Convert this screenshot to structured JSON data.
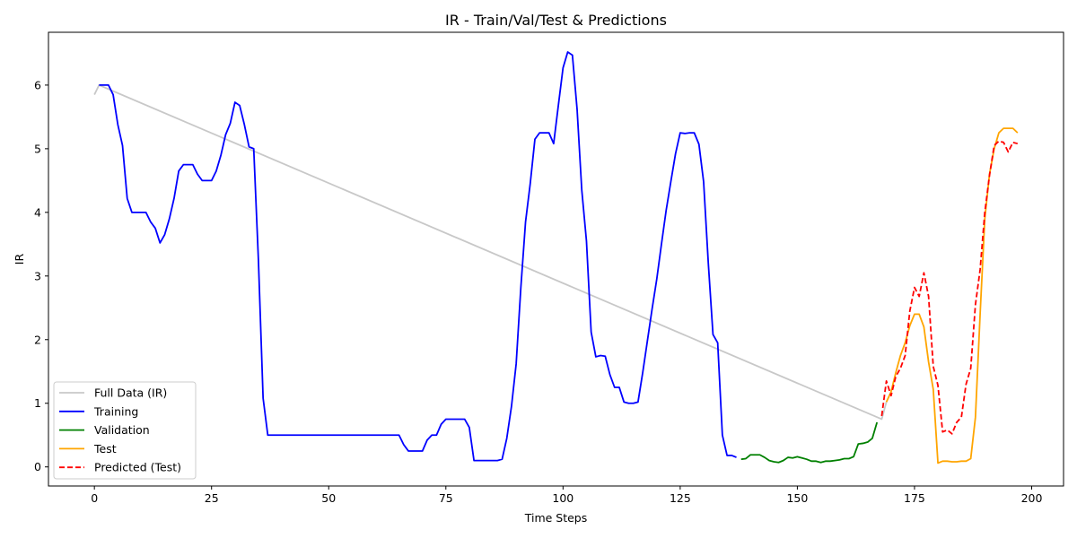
{
  "chart_data": {
    "type": "line",
    "title": "IR - Train/Val/Test & Predictions",
    "xlabel": "Time Steps",
    "ylabel": "IR",
    "xlim": [
      -9.8,
      206.8
    ],
    "ylim": [
      -0.3,
      6.83
    ],
    "xticks": [
      0,
      25,
      50,
      75,
      100,
      125,
      150,
      175,
      200
    ],
    "yticks": [
      0,
      1,
      2,
      3,
      4,
      5,
      6
    ],
    "grid": false,
    "legend_position": "lower-left",
    "series": [
      {
        "name": "Full Data (IR)",
        "color": "#c8c8c8",
        "dash": "solid",
        "points": [
          [
            0,
            5.85
          ],
          [
            1,
            6.0
          ],
          [
            168,
            0.75
          ],
          [
            169,
            1.02
          ]
        ]
      },
      {
        "name": "Training",
        "color": "#0000ff",
        "dash": "solid",
        "points": [
          [
            1,
            6.0
          ],
          [
            2,
            6.0
          ],
          [
            3,
            6.0
          ],
          [
            4,
            5.85
          ],
          [
            5,
            5.38
          ],
          [
            6,
            5.05
          ],
          [
            7,
            4.22
          ],
          [
            8,
            4.0
          ],
          [
            9,
            4.0
          ],
          [
            10,
            4.0
          ],
          [
            11,
            4.0
          ],
          [
            12,
            3.85
          ],
          [
            13,
            3.75
          ],
          [
            14,
            3.52
          ],
          [
            15,
            3.65
          ],
          [
            16,
            3.9
          ],
          [
            17,
            4.22
          ],
          [
            18,
            4.65
          ],
          [
            19,
            4.75
          ],
          [
            20,
            4.75
          ],
          [
            21,
            4.75
          ],
          [
            22,
            4.6
          ],
          [
            23,
            4.5
          ],
          [
            24,
            4.5
          ],
          [
            25,
            4.5
          ],
          [
            26,
            4.65
          ],
          [
            27,
            4.9
          ],
          [
            28,
            5.22
          ],
          [
            29,
            5.4
          ],
          [
            30,
            5.73
          ],
          [
            31,
            5.68
          ],
          [
            32,
            5.38
          ],
          [
            33,
            5.03
          ],
          [
            34,
            5.0
          ],
          [
            35,
            3.25
          ],
          [
            36,
            1.08
          ],
          [
            37,
            0.5
          ],
          [
            40,
            0.5
          ],
          [
            45,
            0.5
          ],
          [
            50,
            0.5
          ],
          [
            55,
            0.5
          ],
          [
            60,
            0.5
          ],
          [
            65,
            0.5
          ],
          [
            66,
            0.35
          ],
          [
            67,
            0.25
          ],
          [
            68,
            0.25
          ],
          [
            69,
            0.25
          ],
          [
            70,
            0.25
          ],
          [
            71,
            0.42
          ],
          [
            72,
            0.5
          ],
          [
            73,
            0.5
          ],
          [
            74,
            0.67
          ],
          [
            75,
            0.75
          ],
          [
            76,
            0.75
          ],
          [
            77,
            0.75
          ],
          [
            78,
            0.75
          ],
          [
            79,
            0.75
          ],
          [
            80,
            0.62
          ],
          [
            81,
            0.1
          ],
          [
            82,
            0.1
          ],
          [
            84,
            0.1
          ],
          [
            86,
            0.1
          ],
          [
            87,
            0.12
          ],
          [
            88,
            0.45
          ],
          [
            89,
            0.95
          ],
          [
            90,
            1.62
          ],
          [
            91,
            2.82
          ],
          [
            92,
            3.85
          ],
          [
            93,
            4.45
          ],
          [
            94,
            5.15
          ],
          [
            95,
            5.25
          ],
          [
            96,
            5.25
          ],
          [
            97,
            5.25
          ],
          [
            98,
            5.08
          ],
          [
            99,
            5.68
          ],
          [
            100,
            6.27
          ],
          [
            101,
            6.52
          ],
          [
            102,
            6.47
          ],
          [
            103,
            5.62
          ],
          [
            104,
            4.35
          ],
          [
            105,
            3.55
          ],
          [
            106,
            2.12
          ],
          [
            107,
            1.73
          ],
          [
            108,
            1.75
          ],
          [
            109,
            1.74
          ],
          [
            110,
            1.45
          ],
          [
            111,
            1.25
          ],
          [
            112,
            1.25
          ],
          [
            113,
            1.02
          ],
          [
            114,
            1.0
          ],
          [
            115,
            1.0
          ],
          [
            116,
            1.02
          ],
          [
            117,
            1.48
          ],
          [
            118,
            1.98
          ],
          [
            119,
            2.48
          ],
          [
            120,
            2.95
          ],
          [
            121,
            3.5
          ],
          [
            122,
            4.03
          ],
          [
            123,
            4.48
          ],
          [
            124,
            4.92
          ],
          [
            125,
            5.25
          ],
          [
            126,
            5.24
          ],
          [
            127,
            5.25
          ],
          [
            128,
            5.25
          ],
          [
            129,
            5.07
          ],
          [
            130,
            4.48
          ],
          [
            131,
            3.2
          ],
          [
            132,
            2.08
          ],
          [
            133,
            1.95
          ],
          [
            134,
            0.5
          ],
          [
            135,
            0.18
          ],
          [
            136,
            0.18
          ],
          [
            137,
            0.15
          ]
        ]
      },
      {
        "name": "Validation",
        "color": "#008000",
        "dash": "solid",
        "points": [
          [
            138,
            0.12
          ],
          [
            139,
            0.13
          ],
          [
            140,
            0.19
          ],
          [
            141,
            0.19
          ],
          [
            142,
            0.19
          ],
          [
            143,
            0.15
          ],
          [
            144,
            0.1
          ],
          [
            145,
            0.08
          ],
          [
            146,
            0.07
          ],
          [
            147,
            0.1
          ],
          [
            148,
            0.15
          ],
          [
            149,
            0.14
          ],
          [
            150,
            0.16
          ],
          [
            151,
            0.14
          ],
          [
            152,
            0.12
          ],
          [
            153,
            0.09
          ],
          [
            154,
            0.09
          ],
          [
            155,
            0.07
          ],
          [
            156,
            0.09
          ],
          [
            157,
            0.09
          ],
          [
            158,
            0.1
          ],
          [
            159,
            0.11
          ],
          [
            160,
            0.13
          ],
          [
            161,
            0.13
          ],
          [
            162,
            0.16
          ],
          [
            163,
            0.36
          ],
          [
            164,
            0.37
          ],
          [
            165,
            0.39
          ],
          [
            166,
            0.45
          ],
          [
            167,
            0.7
          ]
        ]
      },
      {
        "name": "Test",
        "color": "#ffa500",
        "dash": "solid",
        "points": [
          [
            169,
            1.02
          ],
          [
            170,
            1.18
          ],
          [
            171,
            1.48
          ],
          [
            172,
            1.75
          ],
          [
            173,
            1.95
          ],
          [
            174,
            2.22
          ],
          [
            175,
            2.4
          ],
          [
            176,
            2.4
          ],
          [
            177,
            2.2
          ],
          [
            178,
            1.65
          ],
          [
            179,
            1.22
          ],
          [
            180,
            0.06
          ],
          [
            181,
            0.09
          ],
          [
            182,
            0.09
          ],
          [
            183,
            0.08
          ],
          [
            184,
            0.08
          ],
          [
            185,
            0.09
          ],
          [
            186,
            0.09
          ],
          [
            187,
            0.13
          ],
          [
            188,
            0.78
          ],
          [
            189,
            2.4
          ],
          [
            190,
            3.9
          ],
          [
            191,
            4.6
          ],
          [
            192,
            5.0
          ],
          [
            193,
            5.25
          ],
          [
            194,
            5.32
          ],
          [
            195,
            5.32
          ],
          [
            196,
            5.32
          ],
          [
            197,
            5.25
          ]
        ]
      },
      {
        "name": "Predicted (Test)",
        "color": "#ff0000",
        "dash": "dashed",
        "points": [
          [
            168,
            0.8
          ],
          [
            169,
            1.35
          ],
          [
            170,
            1.12
          ],
          [
            171,
            1.42
          ],
          [
            172,
            1.55
          ],
          [
            173,
            1.75
          ],
          [
            174,
            2.45
          ],
          [
            175,
            2.82
          ],
          [
            176,
            2.68
          ],
          [
            177,
            3.05
          ],
          [
            178,
            2.68
          ],
          [
            179,
            1.58
          ],
          [
            180,
            1.28
          ],
          [
            181,
            0.55
          ],
          [
            182,
            0.58
          ],
          [
            183,
            0.52
          ],
          [
            184,
            0.7
          ],
          [
            185,
            0.78
          ],
          [
            186,
            1.3
          ],
          [
            187,
            1.55
          ],
          [
            188,
            2.55
          ],
          [
            189,
            3.1
          ],
          [
            190,
            4.0
          ],
          [
            191,
            4.58
          ],
          [
            192,
            5.05
          ],
          [
            193,
            5.12
          ],
          [
            194,
            5.1
          ],
          [
            195,
            4.95
          ],
          [
            196,
            5.1
          ],
          [
            197,
            5.08
          ]
        ]
      }
    ]
  }
}
